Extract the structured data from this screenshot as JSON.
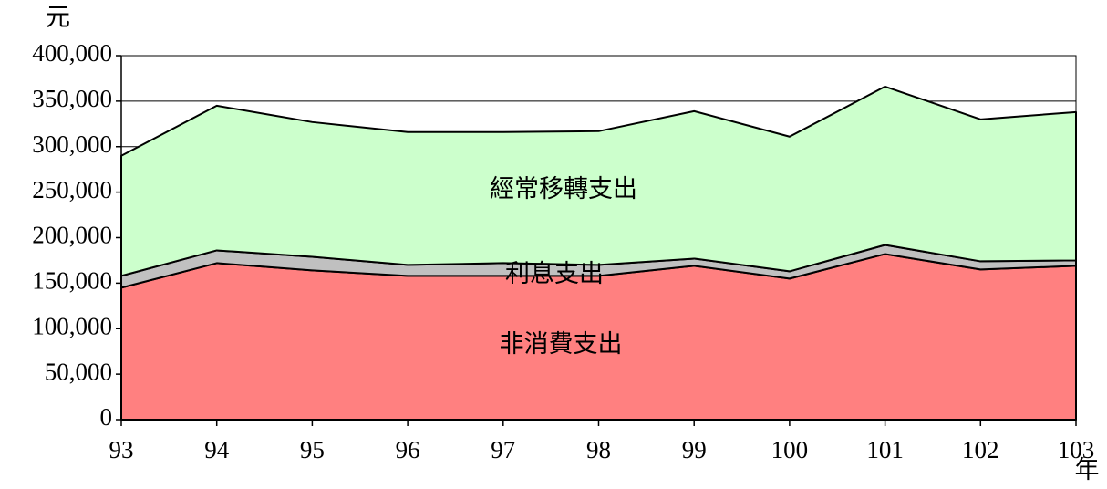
{
  "chart_data": {
    "type": "stacked_area",
    "y_axis_label": "元",
    "x_axis_label": "年",
    "categories": [
      "93",
      "94",
      "95",
      "96",
      "97",
      "98",
      "99",
      "100",
      "101",
      "102",
      "103"
    ],
    "series": [
      {
        "name": "非消費支出",
        "color": "#ff8080",
        "values": [
          145000,
          172000,
          164000,
          158000,
          158000,
          158000,
          169000,
          155000,
          182000,
          165000,
          169000
        ]
      },
      {
        "name": "利息支出",
        "color": "#c0c0c0",
        "values": [
          13000,
          14000,
          15000,
          12000,
          14000,
          12000,
          8000,
          8000,
          10000,
          9000,
          6000
        ]
      },
      {
        "name": "經常移轉支出",
        "color": "#ccffcc",
        "values": [
          132000,
          159000,
          148000,
          146000,
          144000,
          147000,
          162000,
          148000,
          174000,
          156000,
          163000
        ]
      }
    ],
    "ylim": [
      0,
      400000
    ],
    "yticks": [
      0,
      {
        "value": 50000,
        "label": "50,000"
      },
      {
        "value": 100000,
        "label": "100,000"
      },
      {
        "value": 150000,
        "label": "150,000"
      },
      {
        "value": 200000,
        "label": "200,000"
      },
      {
        "value": 250000,
        "label": "250,000"
      },
      {
        "value": 300000,
        "label": "300,000"
      },
      {
        "value": 350000,
        "label": "350,000"
      },
      {
        "value": 400000,
        "label": "400,000"
      }
    ],
    "grid": true
  }
}
